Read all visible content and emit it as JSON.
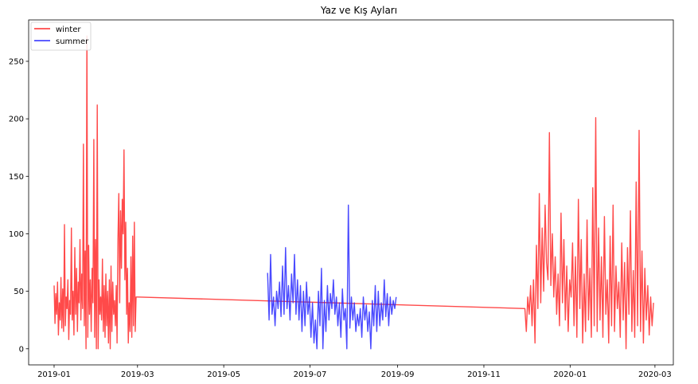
{
  "chart_data": {
    "type": "line",
    "title": "Yaz ve Kış Ayları",
    "xlabel": "",
    "ylabel": "",
    "x_range": [
      "2018-12-14",
      "2020-03-14"
    ],
    "ylim": [
      -14,
      286
    ],
    "x_ticks": [
      "2019-01",
      "2019-03",
      "2019-05",
      "2019-07",
      "2019-09",
      "2019-11",
      "2020-01",
      "2020-03"
    ],
    "y_ticks": [
      0,
      50,
      100,
      150,
      200,
      250
    ],
    "grid": false,
    "legend_position": "top-left",
    "series": [
      {
        "name": "winter",
        "color": "#ff2a2a",
        "segments": [
          {
            "start": "2019-01-01",
            "end": "2019-02-28",
            "values": [
              55,
              22,
              48,
              30,
              58,
              12,
              40,
              25,
              62,
              18,
              52,
              15,
              108,
              20,
              45,
              35,
              60,
              8,
              42,
              30,
              105,
              25,
              50,
              12,
              88,
              30,
              70,
              15,
              58,
              40,
              95,
              25,
              65,
              35,
              178,
              20,
              85,
              0,
              272,
              10,
              90,
              30,
              60,
              15,
              70,
              40,
              182,
              10,
              95,
              0,
              212,
              0,
              60,
              30,
              45,
              25,
              78,
              15,
              55,
              10,
              65,
              20,
              50,
              5,
              60,
              0,
              72,
              15,
              58,
              30,
              42,
              20,
              55,
              5,
              95,
              135,
              40,
              120,
              70,
              130,
              100,
              173,
              60,
              110,
              30,
              70,
              5,
              40,
              15,
              80,
              10,
              98,
              20,
              110,
              15,
              45
            ]
          },
          {
            "start": "2019-03-01",
            "end": "2019-11-30",
            "values": [
              45,
              35
            ]
          },
          {
            "start": "2019-12-01",
            "end": "2020-02-29",
            "values": [
              15,
              45,
              30,
              55,
              20,
              60,
              5,
              90,
              35,
              135,
              40,
              105,
              50,
              125,
              75,
              60,
              188,
              55,
              100,
              45,
              80,
              30,
              65,
              20,
              118,
              40,
              95,
              25,
              72,
              15,
              60,
              45,
              92,
              20,
              80,
              10,
              130,
              35,
              95,
              5,
              65,
              15,
              112,
              25,
              70,
              10,
              140,
              20,
              201,
              15,
              105,
              25,
              80,
              10,
              115,
              30,
              60,
              5,
              98,
              20,
              125,
              15,
              72,
              35,
              58,
              10,
              92,
              25,
              75,
              0,
              88,
              30,
              120,
              15,
              68,
              10,
              145,
              20,
              190,
              15,
              85,
              5,
              70,
              25,
              55,
              12,
              45,
              20,
              40
            ]
          }
        ]
      },
      {
        "name": "summer",
        "color": "#2a2aff",
        "segments": [
          {
            "start": "2019-06-01",
            "end": "2019-08-31",
            "values": [
              66,
              25,
              82,
              30,
              45,
              20,
              50,
              35,
              58,
              28,
              72,
              30,
              88,
              35,
              55,
              25,
              65,
              40,
              82,
              30,
              60,
              25,
              55,
              15,
              50,
              20,
              58,
              30,
              45,
              10,
              40,
              5,
              25,
              0,
              50,
              20,
              70,
              0,
              42,
              15,
              55,
              25,
              48,
              35,
              60,
              30,
              45,
              20,
              40,
              10,
              52,
              25,
              35,
              0,
              125,
              18,
              45,
              25,
              40,
              15,
              30,
              20,
              35,
              10,
              45,
              25,
              38,
              15,
              32,
              0,
              42,
              20,
              55,
              15,
              50,
              20,
              40,
              25,
              60,
              28,
              48,
              20,
              45,
              30,
              42,
              35,
              45
            ]
          }
        ]
      }
    ]
  }
}
